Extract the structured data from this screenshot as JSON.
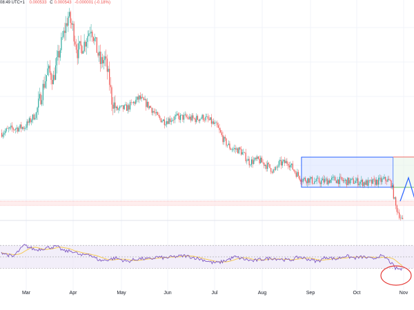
{
  "header": {
    "time": "08:49 UTC+1",
    "ohlc": [
      {
        "label": "",
        "value": "0.000533"
      },
      {
        "label": "C",
        "value": "0.000543"
      },
      {
        "label": "",
        "value": "-0.000001 (-0.18%)"
      }
    ]
  },
  "colors": {
    "up": "#26a69a",
    "down": "#ef5350",
    "rsi_line": "#7e57c2",
    "rsi_ma": "#f5c542",
    "rsi_band": "#ede7f6",
    "range_box": "#dbe4ff",
    "range_border": "#2962ff",
    "resistance": "#ef5350",
    "support": "#4caf50",
    "arrow": "#2962ff",
    "circle": "#e53935"
  },
  "chart_data": {
    "type": "candlestick",
    "x_labels": [
      "Mar",
      "Apr",
      "May",
      "Jun",
      "Jul",
      "Aug",
      "Sep",
      "Oct",
      "Nov"
    ],
    "ylim": [
      0,
      100
    ],
    "price_anchors": [
      [
        0,
        38
      ],
      [
        8,
        40
      ],
      [
        20,
        41
      ],
      [
        30,
        48
      ],
      [
        40,
        70
      ],
      [
        45,
        66
      ],
      [
        52,
        84
      ],
      [
        58,
        98
      ],
      [
        62,
        92
      ],
      [
        66,
        80
      ],
      [
        72,
        84
      ],
      [
        78,
        93
      ],
      [
        82,
        83
      ],
      [
        86,
        74
      ],
      [
        90,
        76
      ],
      [
        94,
        64
      ],
      [
        96,
        55
      ],
      [
        100,
        50
      ],
      [
        110,
        51
      ],
      [
        120,
        56
      ],
      [
        130,
        51
      ],
      [
        136,
        46
      ],
      [
        142,
        44
      ],
      [
        152,
        46
      ],
      [
        160,
        46
      ],
      [
        168,
        45
      ],
      [
        176,
        46
      ],
      [
        182,
        44
      ],
      [
        188,
        41
      ],
      [
        194,
        34
      ],
      [
        200,
        30
      ],
      [
        208,
        29
      ],
      [
        216,
        23
      ],
      [
        224,
        24
      ],
      [
        232,
        21
      ],
      [
        238,
        18
      ],
      [
        242,
        22
      ],
      [
        250,
        23
      ],
      [
        256,
        18
      ],
      [
        262,
        14
      ],
      [
        268,
        14
      ],
      [
        272,
        13
      ],
      [
        280,
        13
      ],
      [
        290,
        14
      ],
      [
        300,
        13
      ],
      [
        310,
        13
      ],
      [
        320,
        12
      ],
      [
        328,
        13
      ],
      [
        336,
        14
      ],
      [
        340,
        12
      ],
      [
        344,
        0
      ],
      [
        350,
        -8
      ]
    ],
    "rsi_anchors": [
      [
        0,
        58
      ],
      [
        10,
        50
      ],
      [
        20,
        70
      ],
      [
        30,
        62
      ],
      [
        40,
        66
      ],
      [
        48,
        68
      ],
      [
        55,
        60
      ],
      [
        62,
        60
      ],
      [
        70,
        52
      ],
      [
        76,
        56
      ],
      [
        80,
        50
      ],
      [
        86,
        44
      ],
      [
        90,
        44
      ],
      [
        100,
        48
      ],
      [
        110,
        42
      ],
      [
        120,
        47
      ],
      [
        130,
        46
      ],
      [
        136,
        50
      ],
      [
        142,
        48
      ],
      [
        150,
        50
      ],
      [
        160,
        52
      ],
      [
        170,
        48
      ],
      [
        178,
        44
      ],
      [
        184,
        40
      ],
      [
        190,
        40
      ],
      [
        196,
        44
      ],
      [
        204,
        50
      ],
      [
        212,
        46
      ],
      [
        220,
        43
      ],
      [
        228,
        46
      ],
      [
        236,
        48
      ],
      [
        244,
        46
      ],
      [
        252,
        44
      ],
      [
        260,
        50
      ],
      [
        268,
        46
      ],
      [
        276,
        42
      ],
      [
        284,
        50
      ],
      [
        292,
        46
      ],
      [
        300,
        52
      ],
      [
        308,
        48
      ],
      [
        316,
        50
      ],
      [
        324,
        46
      ],
      [
        330,
        52
      ],
      [
        336,
        48
      ],
      [
        340,
        40
      ],
      [
        344,
        30
      ],
      [
        350,
        28
      ]
    ],
    "rsi_bands": [
      30,
      50,
      70
    ],
    "annotations": [
      {
        "type": "range-box",
        "from_bar": 262,
        "to_bar": 342,
        "top": 25.5,
        "bottom": 10
      },
      {
        "type": "resistance-line",
        "level": 25.5
      },
      {
        "type": "support-line",
        "level": 10
      },
      {
        "type": "target-line",
        "level": -10
      },
      {
        "type": "circle",
        "panel": "rsi"
      }
    ]
  }
}
